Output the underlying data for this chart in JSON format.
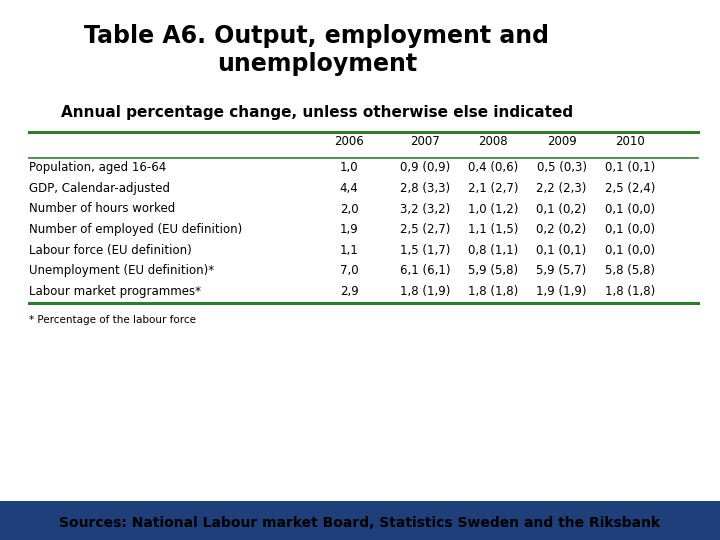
{
  "title": "Table A6. Output, employment and\nunemployment",
  "subtitle": "Annual percentage change, unless otherwise else indicated",
  "columns": [
    "",
    "2006",
    "2007",
    "2008",
    "2009",
    "2010"
  ],
  "rows": [
    [
      "Population, aged 16-64",
      "1,0",
      "0,9 (0,9)",
      "0,4 (0,6)",
      "0,5 (0,3)",
      "0,1 (0,1)"
    ],
    [
      "GDP, Calendar-adjusted",
      "4,4",
      "2,8 (3,3)",
      "2,1 (2,7)",
      "2,2 (2,3)",
      "2,5 (2,4)"
    ],
    [
      "Number of hours worked",
      "2,0",
      "3,2 (3,2)",
      "1,0 (1,2)",
      "0,1 (0,2)",
      "0,1 (0,0)"
    ],
    [
      "Number of employed (EU definition)",
      "1,9",
      "2,5 (2,7)",
      "1,1 (1,5)",
      "0,2 (0,2)",
      "0,1 (0,0)"
    ],
    [
      "Labour force (EU definition)",
      "1,1",
      "1,5 (1,7)",
      "0,8 (1,1)",
      "0,1 (0,1)",
      "0,1 (0,0)"
    ],
    [
      "Unemployment (EU definition)*",
      "7,0",
      "6,1 (6,1)",
      "5,9 (5,8)",
      "5,9 (5,7)",
      "5,8 (5,8)"
    ],
    [
      "Labour market programmes*",
      "2,9",
      "1,8 (1,9)",
      "1,8 (1,8)",
      "1,9 (1,9)",
      "1,8 (1,8)"
    ]
  ],
  "footnote": "* Percentage of the labour force",
  "footer": "Sources: National Labour market Board, Statistics Sweden and the Riksbank",
  "header_line_color": "#2d7d2d",
  "footer_bg_color": "#1e3f7a",
  "footer_text_color": "#000000",
  "title_fontsize": 17,
  "subtitle_fontsize": 11,
  "table_fontsize": 8.5,
  "footnote_fontsize": 7.5,
  "footer_fontsize": 10
}
